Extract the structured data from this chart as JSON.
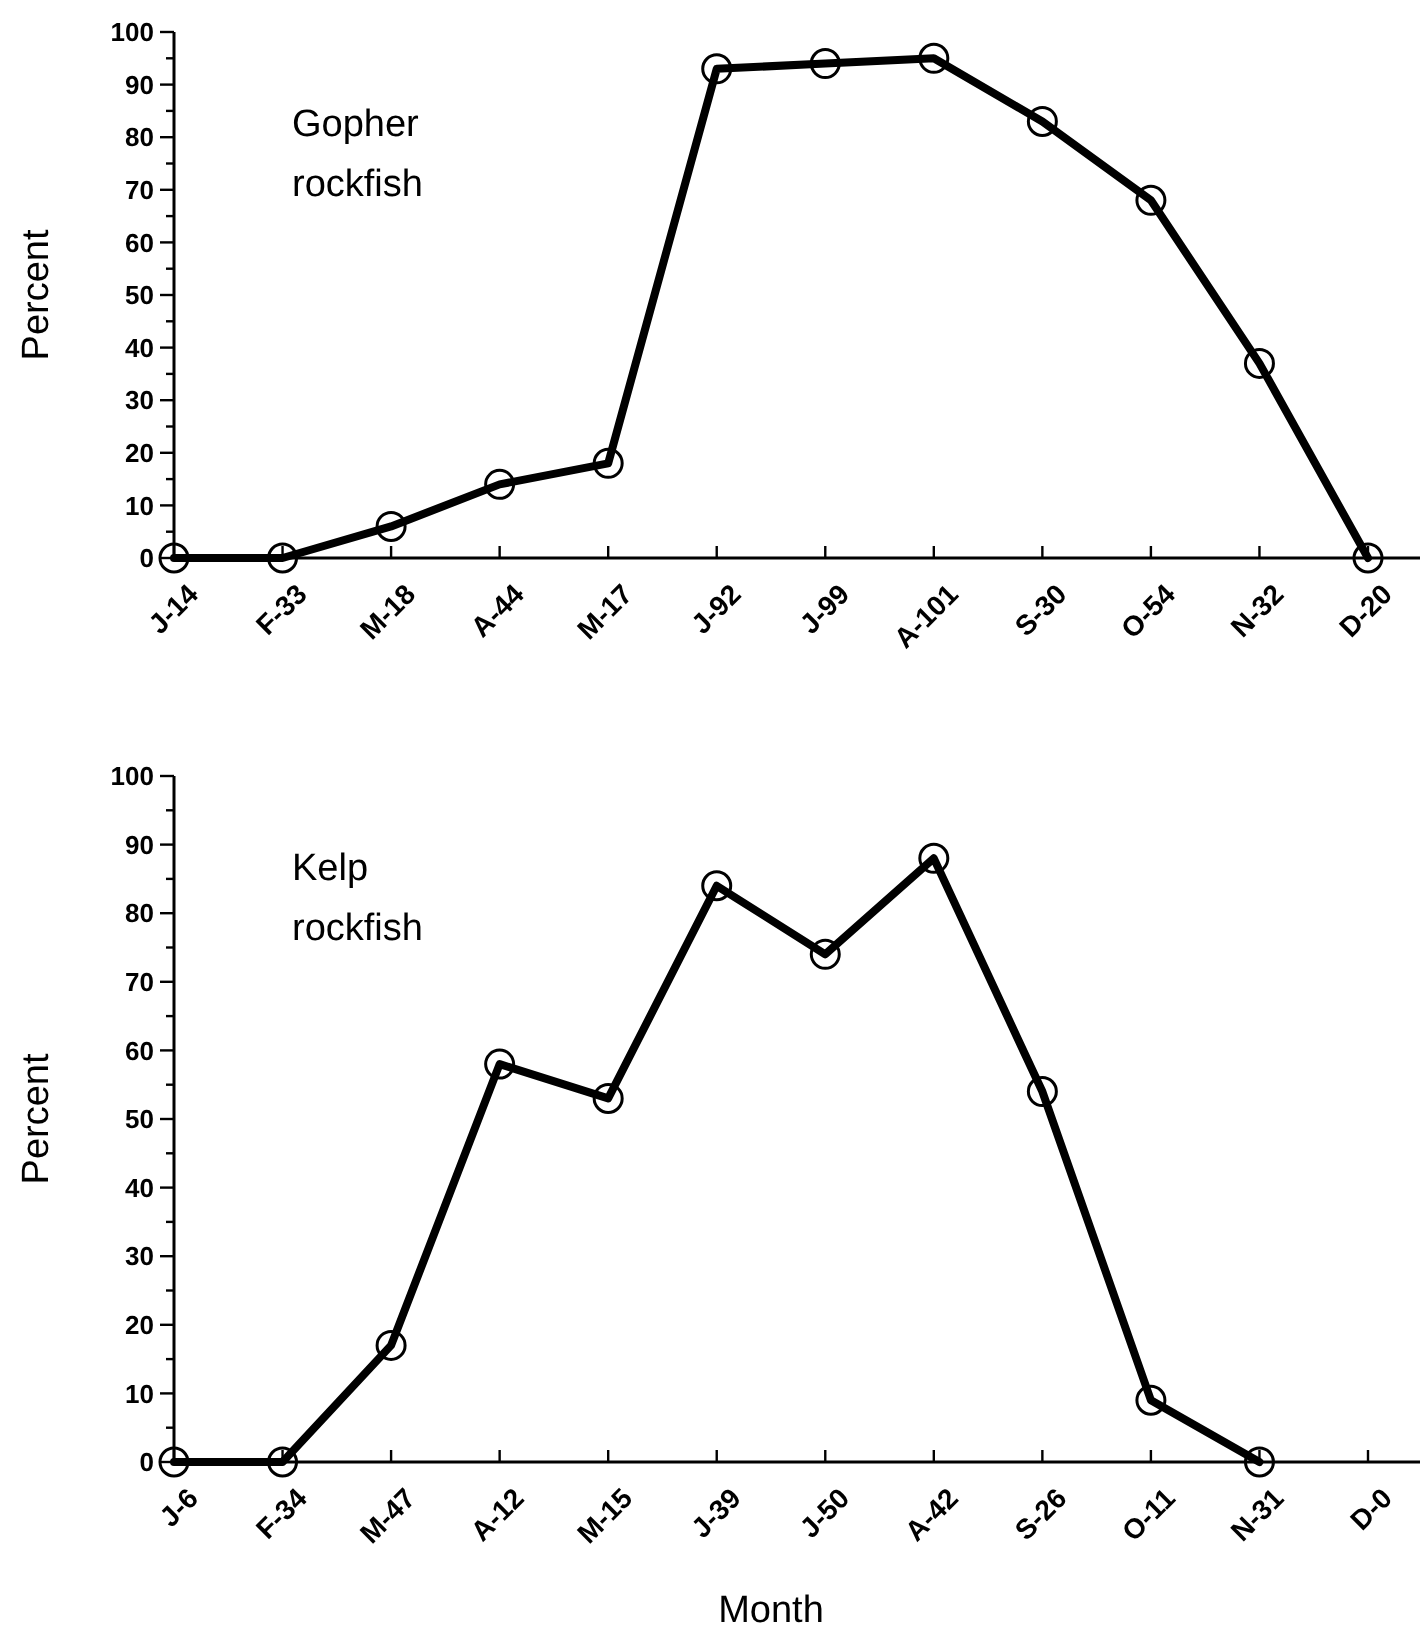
{
  "chart_data": [
    {
      "type": "line",
      "title": "Gopher rockfish",
      "ylabel": "Percent",
      "categories": [
        "J-14",
        "F-33",
        "M-18",
        "A-44",
        "M-17",
        "J-92",
        "J-99",
        "A-101",
        "S-30",
        "O-54",
        "N-32",
        "D-20"
      ],
      "series": [
        {
          "color": "#000000",
          "values": [
            0,
            0,
            6,
            14,
            18,
            93,
            94,
            95,
            83,
            68,
            37,
            0
          ]
        }
      ],
      "ylim": [
        0,
        100
      ],
      "yticks": [
        0,
        {
          "value": 5,
          "label": null
        },
        10,
        {
          "value": 15,
          "label": null
        },
        20,
        {
          "value": 25,
          "label": null
        },
        30,
        {
          "value": 35,
          "label": null
        },
        40,
        {
          "value": 45,
          "label": null
        },
        50,
        {
          "value": 55,
          "label": null
        },
        60,
        {
          "value": 65,
          "label": null
        },
        70,
        {
          "value": 75,
          "label": null
        },
        80,
        {
          "value": 85,
          "label": null
        },
        90,
        {
          "value": 95,
          "label": null
        },
        100
      ],
      "marker": "circle",
      "line_style": "solid",
      "grid": false
    },
    {
      "type": "line",
      "title": "Kelp rockfish",
      "ylabel": "Percent",
      "xlabel": "Month",
      "categories": [
        "J-6",
        "F-34",
        "M-47",
        "A-12",
        "M-15",
        "J-39",
        "J-50",
        "A-42",
        "S-26",
        "O-11",
        "N-31",
        "D-0"
      ],
      "series": [
        {
          "color": "#000000",
          "values": [
            0,
            0,
            17,
            58,
            53,
            84,
            74,
            88,
            54,
            9,
            0,
            null
          ]
        }
      ],
      "ylim": [
        0,
        100
      ],
      "yticks": [
        0,
        {
          "value": 5,
          "label": null
        },
        10,
        {
          "value": 15,
          "label": null
        },
        20,
        {
          "value": 25,
          "label": null
        },
        30,
        {
          "value": 35,
          "label": null
        },
        40,
        {
          "value": 45,
          "label": null
        },
        50,
        {
          "value": 55,
          "label": null
        },
        60,
        {
          "value": 65,
          "label": null
        },
        70,
        {
          "value": 75,
          "label": null
        },
        80,
        {
          "value": 85,
          "label": null
        },
        90,
        {
          "value": 95,
          "label": null
        },
        100
      ],
      "marker": "circle",
      "line_style": "solid",
      "grid": false
    }
  ]
}
